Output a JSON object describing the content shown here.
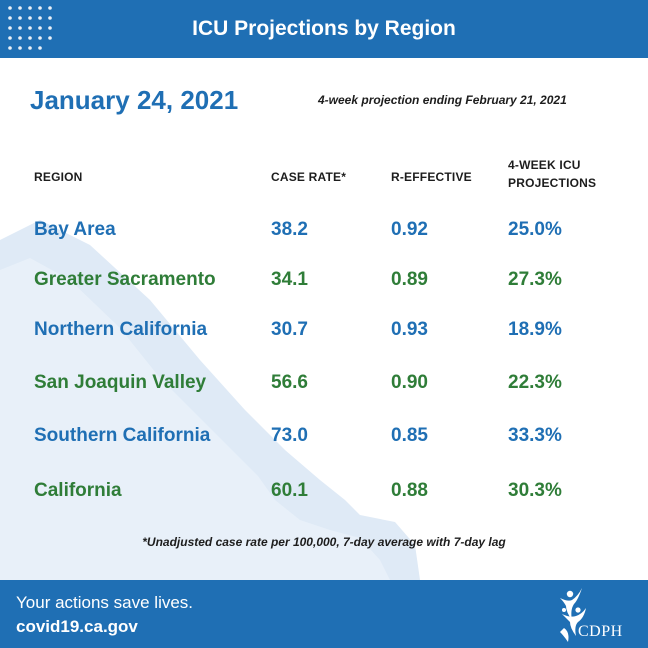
{
  "header": {
    "title": "ICU Projections by Region"
  },
  "report": {
    "date": "January 24, 2021",
    "projection_note": "4-week projection ending February 21, 2021"
  },
  "table": {
    "columns": [
      "REGION",
      "CASE RATE*",
      "R-EFFECTIVE",
      "4-WEEK ICU",
      "PROJECTIONS"
    ],
    "rows": [
      {
        "region": "Bay Area",
        "case_rate": "38.2",
        "r_effective": "0.92",
        "icu": "25.0%",
        "color": "#1f6fb4"
      },
      {
        "region": "Greater Sacramento",
        "case_rate": "34.1",
        "r_effective": "0.89",
        "icu": "27.3%",
        "color": "#2f7d38"
      },
      {
        "region": "Northern California",
        "case_rate": "30.7",
        "r_effective": "0.93",
        "icu": "18.9%",
        "color": "#1f6fb4"
      },
      {
        "region": "San Joaquin Valley",
        "case_rate": "56.6",
        "r_effective": "0.90",
        "icu": "22.3%",
        "color": "#2f7d38"
      },
      {
        "region": "Southern California",
        "case_rate": "73.0",
        "r_effective": "0.85",
        "icu": "33.3%",
        "color": "#1f6fb4"
      },
      {
        "region": "California",
        "case_rate": "60.1",
        "r_effective": "0.88",
        "icu": "30.3%",
        "color": "#2f7d38"
      }
    ]
  },
  "footnote": "*Unadjusted case rate per 100,000, 7-day average with 7-day lag",
  "footer": {
    "tagline": "Your actions save lives.",
    "website": "covid19.ca.gov",
    "logo_text": "CDPH"
  },
  "colors": {
    "brand_blue": "#1f6fb4",
    "brand_green": "#2f7d38",
    "map_tint": "#dfeaf6"
  },
  "icons": [
    "dot-grid-icon",
    "california-map-icon",
    "cdph-logo-icon"
  ]
}
